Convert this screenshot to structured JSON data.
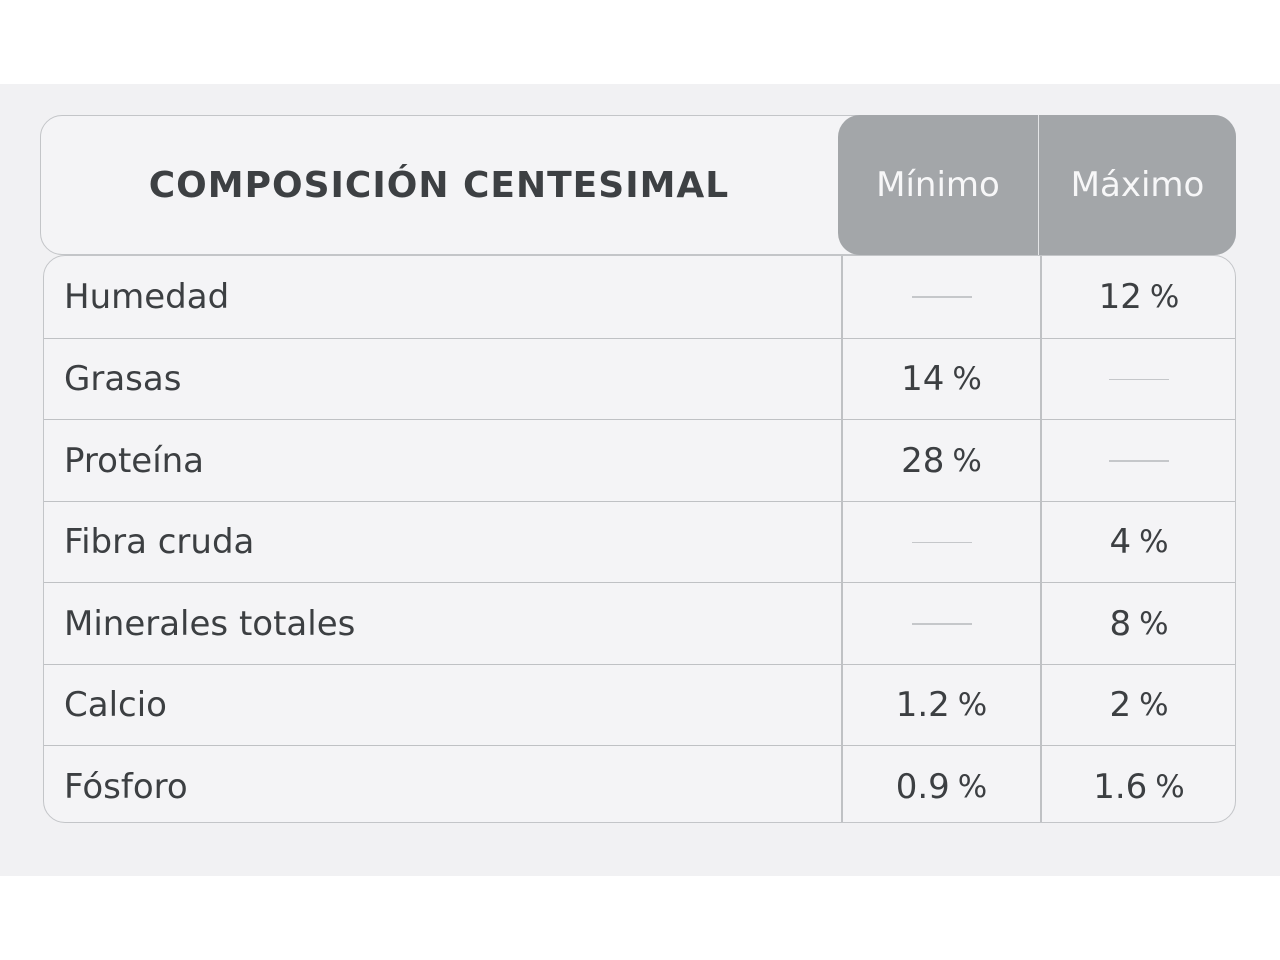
{
  "table": {
    "title": "COMPOSICIÓN CENTESIMAL",
    "columns": [
      "Mínimo",
      "Máximo"
    ],
    "rows": [
      {
        "label": "Humedad",
        "min": "",
        "max": "12 %"
      },
      {
        "label": "Grasas",
        "min": "14 %",
        "max": ""
      },
      {
        "label": "Proteína",
        "min": "28 %",
        "max": ""
      },
      {
        "label": "Fibra cruda",
        "min": "",
        "max": "4 %"
      },
      {
        "label": "Minerales totales",
        "min": "",
        "max": "8 %"
      },
      {
        "label": "Calcio",
        "min": "1.2 %",
        "max": "2 %"
      },
      {
        "label": "Fósforo",
        "min": "0.9 %",
        "max": "1.6 %"
      }
    ]
  },
  "colors": {
    "panel_background": "#f1f1f3",
    "header_accent": "#a3a6a9",
    "text": "#3c3f42",
    "border": "#c3c5c8"
  }
}
